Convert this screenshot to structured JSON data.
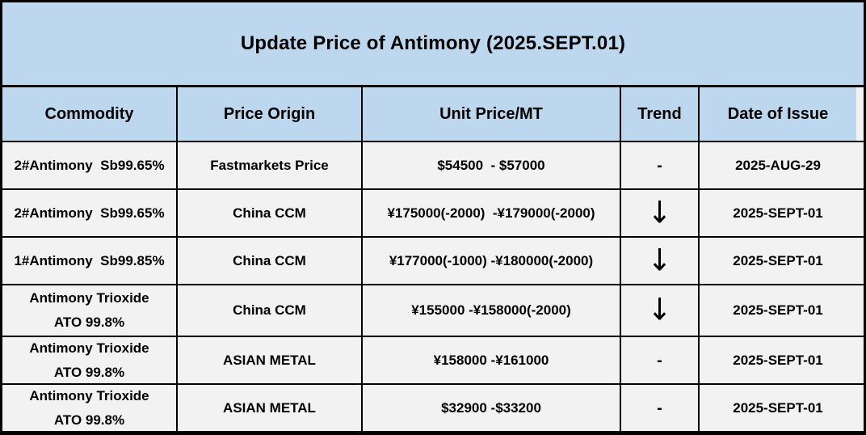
{
  "title": "Update Price of Antimony (2025.SEPT.01)",
  "columns": {
    "commodity": "Commodity",
    "origin": "Price Origin",
    "price": "Unit Price/MT",
    "trend": "Trend",
    "date": "Date of Issue"
  },
  "rows": [
    {
      "commodity": "2#Antimony  Sb99.65%",
      "origin": "Fastmarkets Price",
      "price": "$54500  - $57000",
      "trend": "-",
      "date": "2025-AUG-29"
    },
    {
      "commodity": "2#Antimony  Sb99.65%",
      "origin": "China CCM",
      "price": "¥175000(-2000)  -¥179000(-2000)",
      "trend": "↓",
      "date": "2025-SEPT-01"
    },
    {
      "commodity": "1#Antimony  Sb99.85%",
      "origin": "China CCM",
      "price": "¥177000(-1000) -¥180000(-2000)",
      "trend": "↓",
      "date": "2025-SEPT-01"
    },
    {
      "commodity": "Antimony Trioxide\nATO 99.8%",
      "origin": "China CCM",
      "price": "¥155000 -¥158000(-2000)",
      "trend": "↓",
      "date": "2025-SEPT-01"
    },
    {
      "commodity": "Antimony Trioxide\nATO 99.8%",
      "origin": "ASIAN METAL",
      "price": "¥158000 -¥161000",
      "trend": "-",
      "date": "2025-SEPT-01"
    },
    {
      "commodity": "Antimony Trioxide\nATO 99.8%",
      "origin": "ASIAN METAL",
      "price": "$32900 -$33200",
      "trend": "-",
      "date": "2025-SEPT-01"
    }
  ],
  "colors": {
    "header_bg": "#BDD7EE",
    "row_bg": "#F2F2F2",
    "border": "#000000",
    "text": "#000000"
  },
  "trend_glyphs": {
    "down": "↓",
    "flat": "-"
  }
}
